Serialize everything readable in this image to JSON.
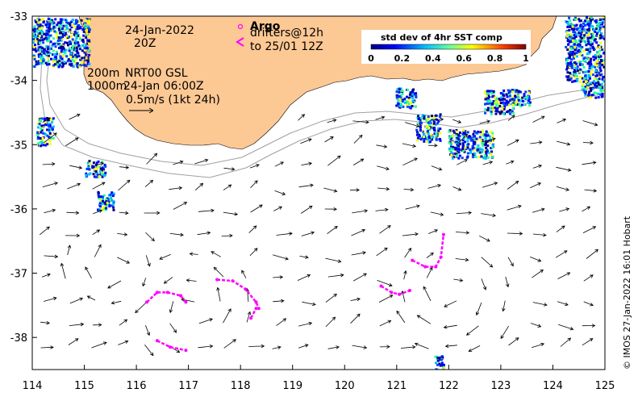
{
  "map": {
    "date_line": "24-Jan-2022",
    "time_line": "20Z",
    "depth_200": "200m",
    "depth_1000": "1000m",
    "product": "NRT00 GSL",
    "product_time": "24-Jan 06:00Z",
    "scale_label": "0.5m/s (1kt 24h)",
    "argo_label": "Argo",
    "drifters_line1": "drifters@12h",
    "drifters_line2": "to 25/01 12Z",
    "colorbar_title": "std dev of 4hr SST comp",
    "colorbar_ticks": [
      "0",
      "0.2",
      "0.4",
      "0.6",
      "0.8",
      "1"
    ],
    "credit": "© IMOS 27-Jan-2022 16:01 Hobart",
    "x_ticks": [
      "114",
      "115",
      "116",
      "117",
      "118",
      "119",
      "120",
      "121",
      "122",
      "123",
      "124",
      "125"
    ],
    "y_ticks": [
      "-33",
      "-34",
      "-35",
      "-36",
      "-37",
      "-38"
    ],
    "colors": {
      "land": "#fcc894",
      "drifter": "#ff00ff",
      "arrow": "#000000",
      "isobath": "#a0a0a0"
    }
  },
  "chart_data": {
    "type": "map",
    "x": {
      "min": 114,
      "max": 125,
      "ticks": [
        114,
        115,
        116,
        117,
        118,
        119,
        120,
        121,
        122,
        123,
        124,
        125
      ]
    },
    "y": {
      "min": -38.5,
      "max": -33,
      "ticks": [
        -33,
        -34,
        -35,
        -36,
        -37,
        -38
      ]
    },
    "drifter_tracks": [
      [
        [
          116.2,
          -37.45
        ],
        [
          116.4,
          -37.3
        ],
        [
          116.6,
          -37.3
        ],
        [
          116.85,
          -37.35
        ],
        [
          116.95,
          -37.45
        ]
      ],
      [
        [
          117.55,
          -37.1
        ],
        [
          117.85,
          -37.12
        ],
        [
          118.1,
          -37.25
        ],
        [
          118.3,
          -37.45
        ],
        [
          118.35,
          -37.55
        ]
      ],
      [
        [
          118.2,
          -37.7
        ],
        [
          118.3,
          -37.55
        ]
      ],
      [
        [
          116.4,
          -38.05
        ],
        [
          116.65,
          -38.15
        ],
        [
          116.95,
          -38.2
        ]
      ],
      [
        [
          120.7,
          -37.2
        ],
        [
          120.9,
          -37.3
        ],
        [
          121.05,
          -37.33
        ],
        [
          121.25,
          -37.27
        ]
      ],
      [
        [
          121.3,
          -36.8
        ],
        [
          121.55,
          -36.9
        ],
        [
          121.75,
          -36.9
        ],
        [
          121.85,
          -36.75
        ],
        [
          121.9,
          -36.4
        ]
      ]
    ]
  }
}
